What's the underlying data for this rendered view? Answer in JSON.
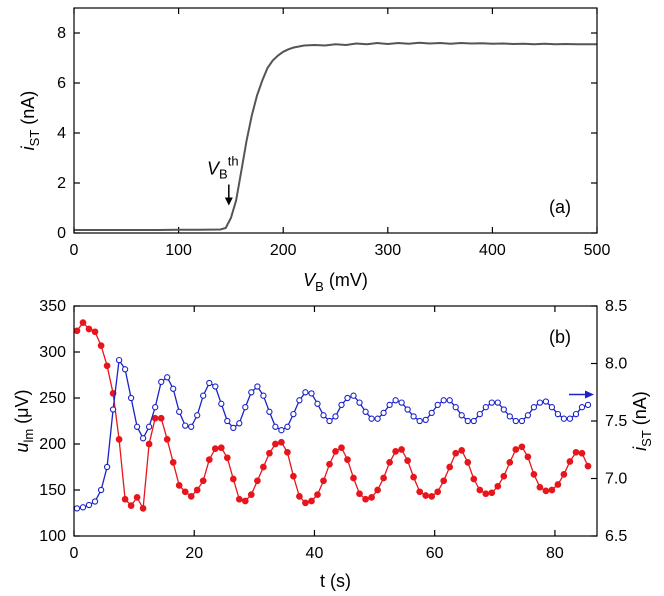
{
  "chart_data": [
    {
      "type": "line",
      "panel_label": "(a)",
      "xlabel": {
        "main": "V",
        "sub": "B",
        "unit": " (mV)"
      },
      "ylabel": {
        "main": "i",
        "sub": "ST",
        "unit": " (nA)"
      },
      "xlim": [
        0,
        500
      ],
      "ylim": [
        0,
        9
      ],
      "xticks": [
        0,
        100,
        200,
        300,
        400,
        500
      ],
      "yticks": [
        0,
        2,
        4,
        6,
        8
      ],
      "annotation": {
        "main": "V",
        "sub": "B",
        "sup": "th",
        "x": 148,
        "y_from": 2.1,
        "y_to": 1.1
      },
      "line_color": "#555555",
      "series": [
        {
          "x": [
            0,
            20,
            40,
            60,
            80,
            100,
            120,
            140,
            145,
            150,
            155,
            160,
            165,
            170,
            175,
            180,
            185,
            190,
            195,
            200,
            205,
            210,
            215,
            220,
            230,
            240,
            250,
            260,
            270,
            280,
            290,
            300,
            310,
            320,
            330,
            340,
            350,
            360,
            370,
            380,
            390,
            400,
            410,
            420,
            430,
            440,
            450,
            460,
            470,
            480,
            490,
            500
          ],
          "y": [
            0.12,
            0.12,
            0.12,
            0.12,
            0.12,
            0.13,
            0.13,
            0.14,
            0.2,
            0.6,
            1.3,
            2.5,
            3.7,
            4.7,
            5.5,
            6.1,
            6.6,
            6.9,
            7.1,
            7.25,
            7.35,
            7.42,
            7.46,
            7.5,
            7.52,
            7.5,
            7.55,
            7.52,
            7.58,
            7.55,
            7.6,
            7.56,
            7.6,
            7.57,
            7.61,
            7.58,
            7.6,
            7.57,
            7.6,
            7.58,
            7.59,
            7.57,
            7.58,
            7.56,
            7.57,
            7.55,
            7.57,
            7.55,
            7.56,
            7.55,
            7.55,
            7.55
          ]
        }
      ]
    },
    {
      "type": "line",
      "panel_label": "(b)",
      "xlabel": "t (s)",
      "ylabel": {
        "main": "u",
        "sub": "lm",
        "unit": " (μV)"
      },
      "ylabel_right": {
        "main": "i",
        "sub": "ST",
        "unit": " (nA)"
      },
      "xlim": [
        0,
        87
      ],
      "ylim": [
        100,
        350
      ],
      "ylim_right": [
        6.5,
        8.5
      ],
      "xticks": [
        0,
        20,
        40,
        60,
        80
      ],
      "yticks": [
        100,
        150,
        200,
        250,
        300,
        350
      ],
      "yticks_right": [
        "6.5",
        "7.0",
        "7.5",
        "8.0",
        "8.5"
      ],
      "right_axis_arrow": {
        "y": 7.73
      },
      "series": [
        {
          "axis": "left",
          "color": "#e8151c",
          "marker": "filled-circle",
          "x": [
            0.5,
            1.5,
            2.5,
            3.5,
            4.5,
            5.5,
            6.5,
            7.5,
            8.5,
            9.5,
            10.5,
            11.5,
            12.5,
            13.5,
            14.5,
            15.5,
            16.5,
            17.5,
            18.5,
            19.5,
            20.5,
            21.5,
            22.5,
            23.5,
            24.5,
            25.5,
            26.5,
            27.5,
            28.5,
            29.5,
            30.5,
            31.5,
            32.5,
            33.5,
            34.5,
            35.5,
            36.5,
            37.5,
            38.5,
            39.5,
            40.5,
            41.5,
            42.5,
            43.5,
            44.5,
            45.5,
            46.5,
            47.5,
            48.5,
            49.5,
            50.5,
            51.5,
            52.5,
            53.5,
            54.5,
            55.5,
            56.5,
            57.5,
            58.5,
            59.5,
            60.5,
            61.5,
            62.5,
            63.5,
            64.5,
            65.5,
            66.5,
            67.5,
            68.5,
            69.5,
            70.5,
            71.5,
            72.5,
            73.5,
            74.5,
            75.5,
            76.5,
            77.5,
            78.5,
            79.5,
            80.5,
            81.5,
            82.5,
            83.5,
            84.5,
            85.5
          ],
          "y": [
            323,
            332,
            325,
            322,
            307,
            285,
            255,
            205,
            140,
            133,
            142,
            130,
            200,
            228,
            228,
            205,
            180,
            155,
            148,
            143,
            150,
            160,
            183,
            195,
            196,
            185,
            162,
            140,
            138,
            145,
            160,
            175,
            190,
            200,
            202,
            191,
            165,
            143,
            136,
            138,
            145,
            160,
            178,
            192,
            196,
            183,
            163,
            146,
            140,
            142,
            150,
            163,
            180,
            192,
            194,
            182,
            164,
            148,
            144,
            143,
            148,
            160,
            175,
            190,
            193,
            180,
            162,
            150,
            146,
            147,
            154,
            165,
            180,
            194,
            197,
            186,
            167,
            153,
            149,
            150,
            156,
            167,
            181,
            191,
            190,
            176
          ]
        },
        {
          "axis": "right",
          "color": "#1a22c8",
          "marker": "open-circle",
          "x": [
            0.5,
            1.5,
            2.5,
            3.5,
            4.5,
            5.5,
            6.5,
            7.5,
            8.5,
            9.5,
            10.5,
            11.5,
            12.5,
            13.5,
            14.5,
            15.5,
            16.5,
            17.5,
            18.5,
            19.5,
            20.5,
            21.5,
            22.5,
            23.5,
            24.5,
            25.5,
            26.5,
            27.5,
            28.5,
            29.5,
            30.5,
            31.5,
            32.5,
            33.5,
            34.5,
            35.5,
            36.5,
            37.5,
            38.5,
            39.5,
            40.5,
            41.5,
            42.5,
            43.5,
            44.5,
            45.5,
            46.5,
            47.5,
            48.5,
            49.5,
            50.5,
            51.5,
            52.5,
            53.5,
            54.5,
            55.5,
            56.5,
            57.5,
            58.5,
            59.5,
            60.5,
            61.5,
            62.5,
            63.5,
            64.5,
            65.5,
            66.5,
            67.5,
            68.5,
            69.5,
            70.5,
            71.5,
            72.5,
            73.5,
            74.5,
            75.5,
            76.5,
            77.5,
            78.5,
            79.5,
            80.5,
            81.5,
            82.5,
            83.5,
            84.5,
            85.5
          ],
          "y": [
            6.74,
            6.75,
            6.77,
            6.8,
            6.9,
            7.1,
            7.6,
            8.03,
            7.95,
            7.7,
            7.45,
            7.35,
            7.45,
            7.62,
            7.84,
            7.88,
            7.78,
            7.58,
            7.46,
            7.45,
            7.55,
            7.72,
            7.83,
            7.8,
            7.65,
            7.5,
            7.44,
            7.48,
            7.62,
            7.75,
            7.8,
            7.72,
            7.58,
            7.45,
            7.42,
            7.45,
            7.56,
            7.68,
            7.75,
            7.74,
            7.65,
            7.55,
            7.5,
            7.54,
            7.64,
            7.7,
            7.72,
            7.66,
            7.58,
            7.52,
            7.52,
            7.57,
            7.64,
            7.68,
            7.66,
            7.6,
            7.54,
            7.5,
            7.51,
            7.57,
            7.64,
            7.68,
            7.68,
            7.62,
            7.55,
            7.5,
            7.5,
            7.56,
            7.62,
            7.66,
            7.66,
            7.6,
            7.54,
            7.5,
            7.5,
            7.55,
            7.62,
            7.66,
            7.67,
            7.62,
            7.56,
            7.52,
            7.52,
            7.56,
            7.62,
            7.64
          ]
        }
      ]
    }
  ]
}
